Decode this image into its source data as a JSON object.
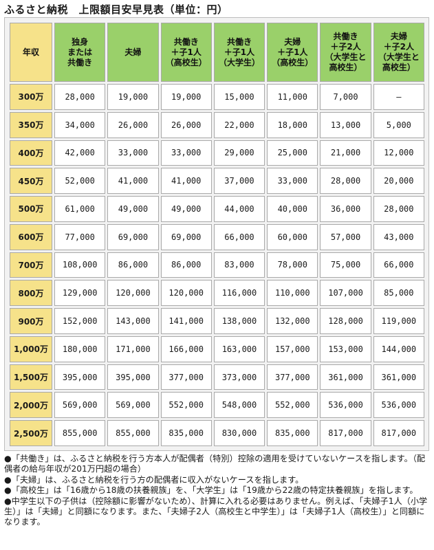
{
  "title": "ふるさと納税　上限額目安早見表（単位：円）",
  "table": {
    "headers": [
      "年収",
      "独身\nまたは\n共働き",
      "夫婦",
      "共働き\n＋子1人\n（高校生）",
      "共働き\n＋子1人\n（大学生）",
      "夫婦\n＋子1人\n（高校生）",
      "共働き\n＋子2人\n（大学生と\n高校生）",
      "夫婦\n＋子2人\n（大学生と\n高校生）"
    ],
    "rows": [
      [
        "300万",
        "28,000",
        "19,000",
        "19,000",
        "15,000",
        "11,000",
        "7,000",
        "—"
      ],
      [
        "350万",
        "34,000",
        "26,000",
        "26,000",
        "22,000",
        "18,000",
        "13,000",
        "5,000"
      ],
      [
        "400万",
        "42,000",
        "33,000",
        "33,000",
        "29,000",
        "25,000",
        "21,000",
        "12,000"
      ],
      [
        "450万",
        "52,000",
        "41,000",
        "41,000",
        "37,000",
        "33,000",
        "28,000",
        "20,000"
      ],
      [
        "500万",
        "61,000",
        "49,000",
        "49,000",
        "44,000",
        "40,000",
        "36,000",
        "28,000"
      ],
      [
        "600万",
        "77,000",
        "69,000",
        "69,000",
        "66,000",
        "60,000",
        "57,000",
        "43,000"
      ],
      [
        "700万",
        "108,000",
        "86,000",
        "86,000",
        "83,000",
        "78,000",
        "75,000",
        "66,000"
      ],
      [
        "800万",
        "129,000",
        "120,000",
        "120,000",
        "116,000",
        "110,000",
        "107,000",
        "85,000"
      ],
      [
        "900万",
        "152,000",
        "143,000",
        "141,000",
        "138,000",
        "132,000",
        "128,000",
        "119,000"
      ],
      [
        "1,000万",
        "180,000",
        "171,000",
        "166,000",
        "163,000",
        "157,000",
        "153,000",
        "144,000"
      ],
      [
        "1,500万",
        "395,000",
        "395,000",
        "377,000",
        "373,000",
        "377,000",
        "361,000",
        "361,000"
      ],
      [
        "2,000万",
        "569,000",
        "569,000",
        "552,000",
        "548,000",
        "552,000",
        "536,000",
        "536,000"
      ],
      [
        "2,500万",
        "855,000",
        "855,000",
        "835,000",
        "830,000",
        "835,000",
        "817,000",
        "817,000"
      ]
    ]
  },
  "notes": [
    "●「共働き」は、ふるさと納税を行う方本人が配偶者（特別）控除の適用を受けていないケースを指します。（配偶者の給与年収が201万円超の場合）",
    "●「夫婦」は、ふるさと納税を行う方の配偶者に収入がないケースを指します。",
    "●「高校生」は「16歳から18歳の扶養親族」を、「大学生」は「19歳から22歳の特定扶養親族」を指します。",
    "●中学生以下の子供は（控除額に影響がないため）、計算に入れる必要はありません。例えば、「夫婦子1人（小学生）」は「夫婦」と同額になります。また、「夫婦子2人（高校生と中学生）」は「夫婦子1人（高校生）」と同額になります。"
  ],
  "colors": {
    "header_bg": "#9ad06a",
    "year_bg": "#f6e28a",
    "frame_bg": "#f2f2f2"
  }
}
